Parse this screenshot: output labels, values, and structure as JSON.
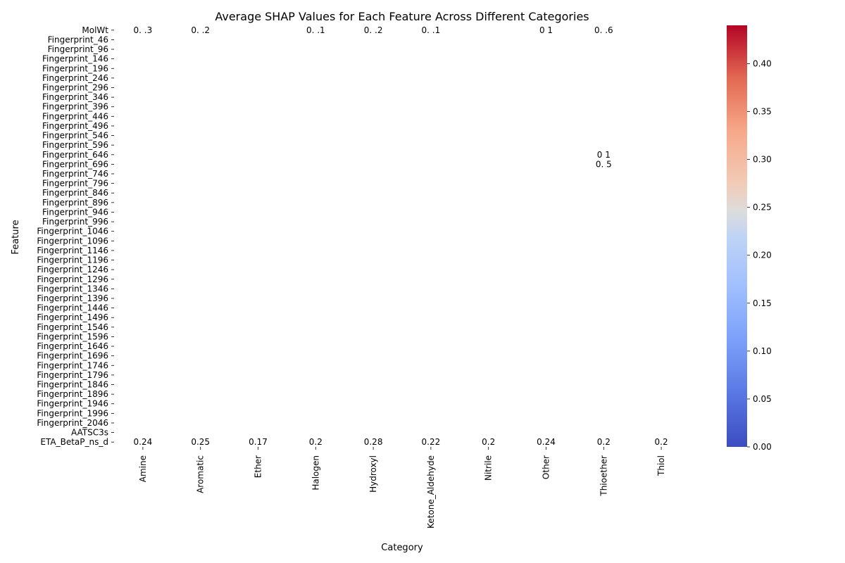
{
  "chart_data": {
    "type": "heatmap",
    "title": "Average SHAP Values for Each Feature Across Different Categories",
    "xlabel": "Category",
    "ylabel": "Feature",
    "categories": [
      "Amine",
      "Aromatic",
      "Ether",
      "Halogen",
      "Hydroxyl",
      "Ketone_Aldehyde",
      "Nitrile",
      "Other",
      "Thioether",
      "Thiol"
    ],
    "y_tick_labels": [
      "MolWt",
      "Fingerprint_46",
      "Fingerprint_96",
      "Fingerprint_146",
      "Fingerprint_196",
      "Fingerprint_246",
      "Fingerprint_296",
      "Fingerprint_346",
      "Fingerprint_396",
      "Fingerprint_446",
      "Fingerprint_496",
      "Fingerprint_546",
      "Fingerprint_596",
      "Fingerprint_646",
      "Fingerprint_696",
      "Fingerprint_746",
      "Fingerprint_796",
      "Fingerprint_846",
      "Fingerprint_896",
      "Fingerprint_946",
      "Fingerprint_996",
      "Fingerprint_1046",
      "Fingerprint_1096",
      "Fingerprint_1146",
      "Fingerprint_1196",
      "Fingerprint_1246",
      "Fingerprint_1296",
      "Fingerprint_1346",
      "Fingerprint_1396",
      "Fingerprint_1446",
      "Fingerprint_1496",
      "Fingerprint_1546",
      "Fingerprint_1596",
      "Fingerprint_1646",
      "Fingerprint_1696",
      "Fingerprint_1746",
      "Fingerprint_1796",
      "Fingerprint_1846",
      "Fingerprint_1896",
      "Fingerprint_1946",
      "Fingerprint_1996",
      "Fingerprint_2046",
      "AATSC3s",
      "ETA_BetaP_ns_d"
    ],
    "annotations": [
      {
        "feature": "MolWt",
        "category": "Amine",
        "text": "0.  .3"
      },
      {
        "feature": "MolWt",
        "category": "Aromatic",
        "text": "0.  .2"
      },
      {
        "feature": "MolWt",
        "category": "Halogen",
        "text": "0.  .1"
      },
      {
        "feature": "MolWt",
        "category": "Hydroxyl",
        "text": "0.  .2"
      },
      {
        "feature": "MolWt",
        "category": "Ketone_Aldehyde",
        "text": "0.  .1"
      },
      {
        "feature": "MolWt",
        "category": "Other",
        "text": "0  1"
      },
      {
        "feature": "MolWt",
        "category": "Thioether",
        "text": "0.  .6"
      },
      {
        "feature": "Fingerprint_646",
        "category": "Thioether",
        "text": "0  1"
      },
      {
        "feature": "Fingerprint_696",
        "category": "Thioether",
        "text": "0.   5"
      },
      {
        "feature": "ETA_BetaP_ns_d",
        "category": "Amine",
        "text": "0.24"
      },
      {
        "feature": "ETA_BetaP_ns_d",
        "category": "Aromatic",
        "text": "0.25"
      },
      {
        "feature": "ETA_BetaP_ns_d",
        "category": "Ether",
        "text": "0.17"
      },
      {
        "feature": "ETA_BetaP_ns_d",
        "category": "Halogen",
        "text": "0.2"
      },
      {
        "feature": "ETA_BetaP_ns_d",
        "category": "Hydroxyl",
        "text": "0.28"
      },
      {
        "feature": "ETA_BetaP_ns_d",
        "category": "Ketone_Aldehyde",
        "text": "0.22"
      },
      {
        "feature": "ETA_BetaP_ns_d",
        "category": "Nitrile",
        "text": "0.2"
      },
      {
        "feature": "ETA_BetaP_ns_d",
        "category": "Other",
        "text": "0.24"
      },
      {
        "feature": "ETA_BetaP_ns_d",
        "category": "Thioether",
        "text": "0.2"
      },
      {
        "feature": "ETA_BetaP_ns_d",
        "category": "Thiol",
        "text": "0.2"
      }
    ],
    "colorbar": {
      "colormap": "coolwarm",
      "vmin": 0.0,
      "vmax": 0.44,
      "ticks": [
        0.0,
        0.05,
        0.1,
        0.15,
        0.2,
        0.25,
        0.3,
        0.35,
        0.4
      ],
      "tick_labels": [
        "0.00",
        "0.05",
        "0.10",
        "0.15",
        "0.20",
        "0.25",
        "0.30",
        "0.35",
        "0.40"
      ],
      "colors": {
        "low": "#3b4cc0",
        "mid": "#dddddd",
        "high": "#b40426"
      }
    },
    "grid": false
  }
}
